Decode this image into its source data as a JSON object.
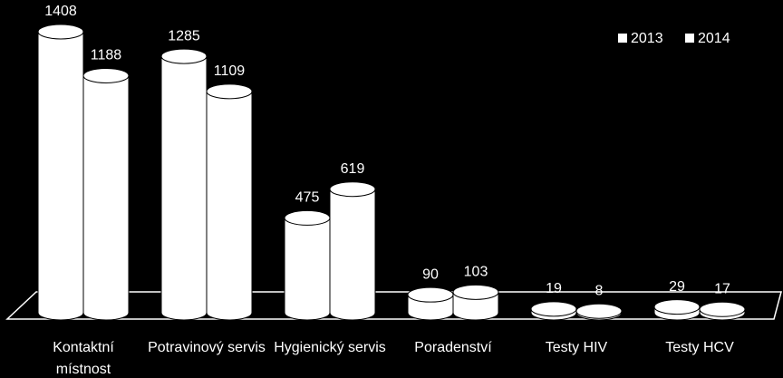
{
  "chart_data": {
    "type": "bar3d",
    "categories": [
      "Kontaktní místnost",
      "Potravinový servis",
      "Hygienický servis",
      "Poradenství",
      "Testy HIV",
      "Testy HCV"
    ],
    "series": [
      {
        "name": "2013",
        "color": "#ffffff",
        "values": [
          1408,
          1285,
          475,
          90,
          19,
          29
        ]
      },
      {
        "name": "2014",
        "color": "#ffffff",
        "values": [
          1188,
          1109,
          619,
          103,
          8,
          17
        ]
      }
    ],
    "legend": "top-right"
  }
}
